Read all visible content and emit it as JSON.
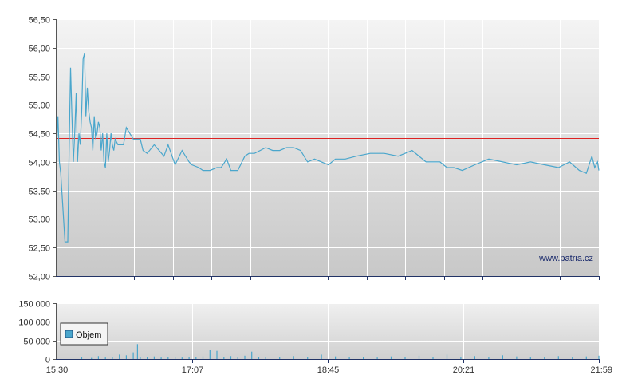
{
  "chart_data": [
    {
      "type": "line",
      "x_tick_labels": [
        "15:30",
        "17:07",
        "18:45",
        "20:21",
        "21:59"
      ],
      "x_range_minutes": [
        930,
        1319
      ],
      "ylim": [
        52.0,
        56.5
      ],
      "y_tick_labels": [
        "52,00",
        "52,50",
        "53,00",
        "53,50",
        "54,00",
        "54,50",
        "55,00",
        "55,50",
        "56,00",
        "56,50"
      ],
      "reference_line": {
        "value": 54.42,
        "color": "#dd2222"
      },
      "line_color": "#4aa6cc",
      "grid": true,
      "watermark": "www.patria.cz",
      "series": [
        {
          "x": [
            "15:30",
            "15:31",
            "15:32",
            "15:33",
            "15:36",
            "15:38",
            "15:39",
            "15:40",
            "15:41",
            "15:42",
            "15:43",
            "15:44",
            "15:45",
            "15:46",
            "15:47",
            "15:48",
            "15:49",
            "15:50",
            "15:51",
            "15:52",
            "15:53",
            "15:54",
            "15:55",
            "15:56",
            "15:57",
            "15:58",
            "15:59",
            "16:00",
            "16:01",
            "16:02",
            "16:03",
            "16:04",
            "16:05",
            "16:06",
            "16:07",
            "16:08",
            "16:09",
            "16:10",
            "16:11",
            "16:12",
            "16:14",
            "16:15",
            "16:16",
            "16:18",
            "16:20",
            "16:25",
            "16:28",
            "16:30",
            "16:32",
            "16:35",
            "16:40",
            "16:47",
            "16:50",
            "16:55",
            "17:00",
            "17:05",
            "17:07",
            "17:12",
            "17:15",
            "17:20",
            "17:25",
            "17:28",
            "17:32",
            "17:35",
            "17:40",
            "17:45",
            "17:48",
            "17:52",
            "17:56",
            "18:00",
            "18:05",
            "18:10",
            "18:15",
            "18:20",
            "18:25",
            "18:30",
            "18:35",
            "18:40",
            "18:45",
            "18:50",
            "18:57",
            "19:05",
            "19:15",
            "19:25",
            "19:35",
            "19:45",
            "19:55",
            "20:05",
            "20:10",
            "20:15",
            "20:21",
            "20:30",
            "20:40",
            "20:50",
            "21:00",
            "21:10",
            "21:20",
            "21:30",
            "21:38",
            "21:45",
            "21:50",
            "21:54",
            "21:56",
            "21:58",
            "21:59"
          ],
          "values": [
            54.3,
            54.8,
            54.0,
            53.8,
            52.6,
            52.6,
            54.2,
            55.65,
            54.8,
            54.0,
            54.5,
            55.2,
            54.0,
            54.5,
            54.3,
            54.9,
            55.8,
            55.9,
            54.8,
            55.3,
            54.9,
            54.7,
            54.6,
            54.2,
            54.8,
            54.4,
            54.5,
            54.7,
            54.6,
            54.2,
            54.5,
            54.0,
            53.9,
            54.5,
            54.0,
            54.2,
            54.5,
            54.3,
            54.2,
            54.4,
            54.3,
            54.3,
            54.3,
            54.3,
            54.6,
            54.4,
            54.4,
            54.4,
            54.2,
            54.15,
            54.3,
            54.1,
            54.3,
            53.95,
            54.2,
            54.0,
            53.95,
            53.9,
            53.85,
            53.85,
            53.9,
            53.9,
            54.05,
            53.85,
            53.85,
            54.1,
            54.15,
            54.15,
            54.2,
            54.25,
            54.2,
            54.2,
            54.25,
            54.25,
            54.2,
            54.0,
            54.05,
            54.0,
            53.95,
            54.05,
            54.05,
            54.1,
            54.15,
            54.15,
            54.1,
            54.2,
            54.0,
            54.0,
            53.9,
            53.9,
            53.85,
            53.95,
            54.05,
            54.0,
            53.95,
            54.0,
            53.95,
            53.9,
            54.0,
            53.85,
            53.8,
            54.1,
            53.9,
            54.0,
            53.85
          ]
        }
      ]
    },
    {
      "type": "bar",
      "ylim": [
        0,
        150000
      ],
      "y_tick_labels": [
        "0",
        "50 000",
        "100 000",
        "150 000"
      ],
      "x_tick_labels": [
        "15:30",
        "17:07",
        "18:45",
        "20:21",
        "21:59"
      ],
      "bar_color": "#4aa6cc",
      "grid": true,
      "legend": {
        "label": "Objem",
        "color": "#4aa6cc",
        "placement": "top-left"
      },
      "series": [
        {
          "name": "Objem",
          "x": [
            "15:48",
            "15:55",
            "16:00",
            "16:05",
            "16:10",
            "16:15",
            "16:20",
            "16:25",
            "16:28",
            "16:30",
            "16:35",
            "16:40",
            "16:45",
            "16:50",
            "16:55",
            "17:00",
            "17:05",
            "17:10",
            "17:15",
            "17:20",
            "17:25",
            "17:30",
            "17:35",
            "17:40",
            "17:45",
            "17:50",
            "17:55",
            "18:00",
            "18:10",
            "18:20",
            "18:30",
            "18:40",
            "18:50",
            "19:00",
            "19:10",
            "19:20",
            "19:30",
            "19:40",
            "19:50",
            "20:00",
            "20:10",
            "20:20",
            "20:30",
            "20:40",
            "20:50",
            "21:00",
            "21:10",
            "21:20",
            "21:30",
            "21:40",
            "21:50",
            "21:59"
          ],
          "values": [
            5000,
            3000,
            8000,
            4000,
            6000,
            12000,
            10000,
            18000,
            40000,
            6000,
            5000,
            7000,
            4000,
            6000,
            5000,
            4000,
            5000,
            6000,
            7000,
            25000,
            22000,
            6000,
            8000,
            5000,
            9000,
            20000,
            6000,
            5000,
            6000,
            8000,
            5000,
            12000,
            7000,
            5000,
            6000,
            4000,
            7000,
            5000,
            9000,
            6000,
            12000,
            5000,
            8000,
            6000,
            10000,
            7000,
            5000,
            6000,
            8000,
            5000,
            7000,
            9000
          ]
        }
      ]
    }
  ]
}
